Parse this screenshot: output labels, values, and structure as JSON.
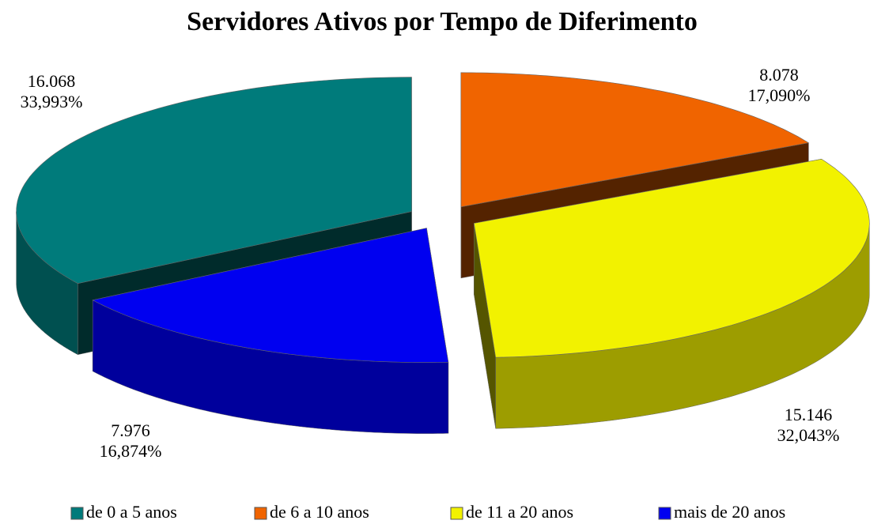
{
  "chart_data": {
    "type": "pie3d",
    "title": "Servidores Ativos por Tempo de Diferimento",
    "categories": [
      "de 0 a 5 anos",
      "de 6 a 10 anos",
      "de 11 a 20 anos",
      "mais de 20 anos"
    ],
    "values": [
      16068,
      8078,
      15146,
      7976
    ],
    "value_labels": [
      "16.068",
      "8.078",
      "15.146",
      "7.976"
    ],
    "percents": [
      33.993,
      17.09,
      32.043,
      16.874
    ],
    "percent_labels": [
      "33,993%",
      "17,090%",
      "32,043%",
      "16,874%"
    ],
    "colors": [
      "#007b7b",
      "#f06400",
      "#f2f200",
      "#0000f0"
    ],
    "legend": "bottom"
  }
}
